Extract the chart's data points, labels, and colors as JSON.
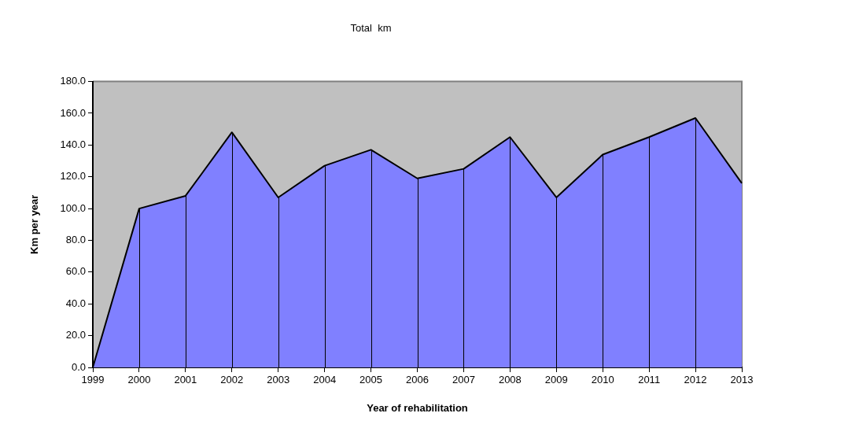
{
  "chart_data": {
    "type": "area",
    "title": "Total  km",
    "xlabel": "Year of rehabilitation",
    "ylabel": "Km per year",
    "categories": [
      "1999",
      "2000",
      "2001",
      "2002",
      "2003",
      "2004",
      "2005",
      "2006",
      "2007",
      "2008",
      "2009",
      "2010",
      "2011",
      "2012",
      "2013"
    ],
    "values": [
      0,
      100,
      108,
      148,
      107,
      127,
      137,
      119,
      125,
      145,
      107,
      134,
      145,
      157,
      116
    ],
    "color": "#8080ff",
    "marker": "none",
    "grid": "x",
    "ylim": [
      0,
      180
    ],
    "yticks": [
      {
        "value": 0,
        "label": "0.0"
      },
      {
        "value": 20,
        "label": "20.0"
      },
      {
        "value": 40,
        "label": "40.0"
      },
      {
        "value": 60,
        "label": "60.0"
      },
      {
        "value": 80,
        "label": "80.0"
      },
      {
        "value": 100,
        "label": "100.0"
      },
      {
        "value": 120,
        "label": "120.0"
      },
      {
        "value": 140,
        "label": "140.0"
      },
      {
        "value": 160,
        "label": "160.0"
      },
      {
        "value": 180,
        "label": "180.0"
      }
    ]
  }
}
